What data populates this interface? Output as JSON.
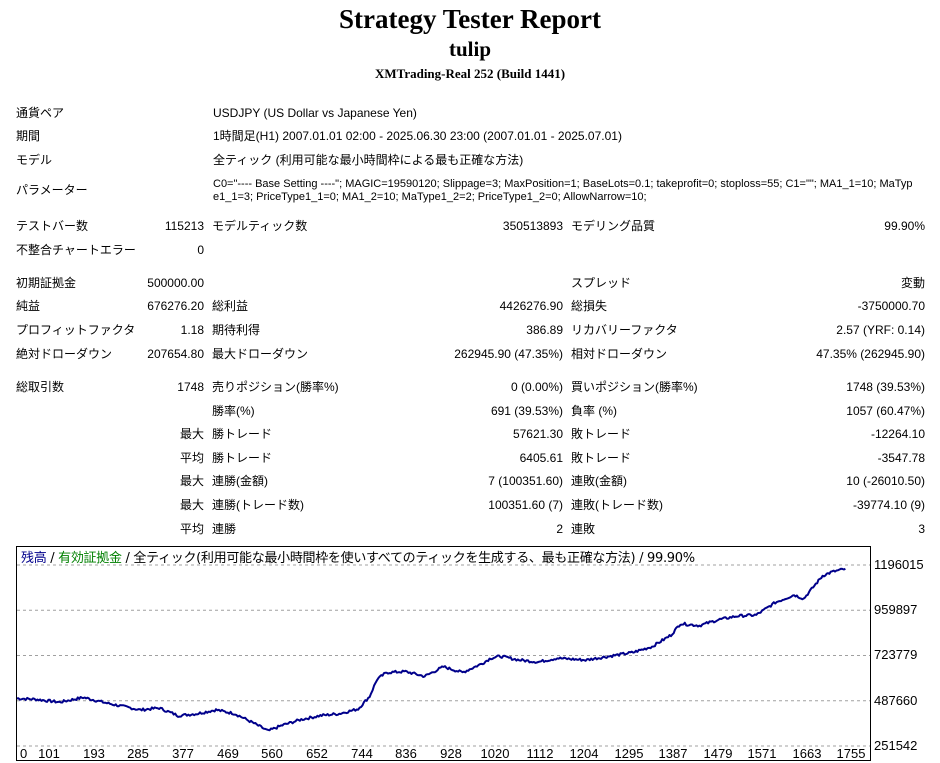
{
  "header": {
    "title": "Strategy Tester Report",
    "subtitle": "tulip",
    "server": "XMTrading-Real 252 (Build 1441)"
  },
  "settings": {
    "symbol_label": "通貨ペア",
    "symbol_value": "USDJPY (US Dollar vs Japanese Yen)",
    "period_label": "期間",
    "period_value": "1時間足(H1) 2007.01.01 02:00 - 2025.06.30 23:00 (2007.01.01 - 2025.07.01)",
    "model_label": "モデル",
    "model_value": "全ティック (利用可能な最小時間枠による最も正確な方法)",
    "params_label": "パラメーター",
    "params_value": "C0=\"---- Base Setting ----\"; MAGIC=19590120; Slippage=3; MaxPosition=1; BaseLots=0.1; takeprofit=0; stoploss=55; C1=\"\"; MA1_1=10; MaType1_1=3; PriceType1_1=0; MA1_2=10; MaType1_2=2; PriceType1_2=0; AllowNarrow=10;"
  },
  "stats": {
    "bars_label": "テストバー数",
    "bars_value": "115213",
    "ticks_label": "モデルティック数",
    "ticks_value": "350513893",
    "quality_label": "モデリング品質",
    "quality_value": "99.90%",
    "mismatch_label": "不整合チャートエラー",
    "mismatch_value": "0",
    "deposit_label": "初期証拠金",
    "deposit_value": "500000.00",
    "spread_label": "スプレッド",
    "spread_value": "変動",
    "net_label": "純益",
    "net_value": "676276.20",
    "gross_profit_label": "総利益",
    "gross_profit_value": "4426276.90",
    "gross_loss_label": "総損失",
    "gross_loss_value": "-3750000.70",
    "pf_label": "プロフィットファクタ",
    "pf_value": "1.18",
    "payoff_label": "期待利得",
    "payoff_value": "386.89",
    "rf_label": "リカバリーファクタ",
    "rf_value": "2.57 (YRF: 0.14)",
    "abs_dd_label": "絶対ドローダウン",
    "abs_dd_value": "207654.80",
    "max_dd_label": "最大ドローダウン",
    "max_dd_value": "262945.90 (47.35%)",
    "rel_dd_label": "相対ドローダウン",
    "rel_dd_value": "47.35% (262945.90)",
    "trades_label": "総取引数",
    "trades_value": "1748",
    "short_label": "売りポジション(勝率%)",
    "short_value": "0 (0.00%)",
    "long_label": "買いポジション(勝率%)",
    "long_value": "1748 (39.53%)",
    "winrate_label": "勝率(%)",
    "winrate_value": "691 (39.53%)",
    "lossrate_label": "負率 (%)",
    "lossrate_value": "1057 (60.47%)",
    "largest_label": "最大",
    "largest_win_label": "勝トレード",
    "largest_win_value": "57621.30",
    "largest_loss_label": "敗トレード",
    "largest_loss_value": "-12264.10",
    "average_label": "平均",
    "avg_win_label": "勝トレード",
    "avg_win_value": "6405.61",
    "avg_loss_label": "敗トレード",
    "avg_loss_value": "-3547.78",
    "max_consec_label": "最大",
    "max_consec_wins_label": "連勝(金額)",
    "max_consec_wins_value": "7 (100351.60)",
    "max_consec_losses_label": "連敗(金額)",
    "max_consec_losses_value": "10 (-26010.50)",
    "maximal_consec_label": "最大",
    "maximal_wins_label": "連勝(トレード数)",
    "maximal_wins_value": "100351.60 (7)",
    "maximal_losses_label": "連敗(トレード数)",
    "maximal_losses_value": "-39774.10 (9)",
    "avg_consec_label": "平均",
    "avg_consec_wins_label": "連勝",
    "avg_consec_wins_value": "2",
    "avg_consec_losses_label": "連敗",
    "avg_consec_losses_value": "3"
  },
  "chart_data": {
    "type": "line",
    "legend": {
      "balance": "残高",
      "sep1": " / ",
      "equity": "有効証拠金",
      "sep2": " / ",
      "model": "全ティック(利用可能な最小時間枠を使いすべてのティックを生成する、最も正確な方法)",
      "sep3": " / ",
      "quality": "99.90%"
    },
    "colors": {
      "line": "#00008b",
      "balance_text": "#00008b",
      "equity_text": "#008000",
      "grid": "#a0a0a0"
    },
    "xlim": [
      0,
      1800
    ],
    "ylim": [
      251542,
      1196015
    ],
    "yticks": [
      "1196015",
      "959897",
      "723779",
      "487660",
      "251542"
    ],
    "xticks": [
      "0",
      "101",
      "193",
      "285",
      "377",
      "469",
      "560",
      "652",
      "744",
      "836",
      "928",
      "1020",
      "1112",
      "1204",
      "1295",
      "1387",
      "1479",
      "1571",
      "1663",
      "1755"
    ],
    "series": [
      {
        "x": [
          0,
          40,
          90,
          140,
          190,
          230,
          260,
          300,
          340,
          380,
          420,
          460,
          500,
          530,
          560,
          600,
          640,
          680,
          720,
          744,
          760,
          780,
          820,
          860,
          900,
          940,
          980,
          1000,
          1020,
          1060,
          1100,
          1140,
          1200,
          1250,
          1300,
          1340,
          1380,
          1400,
          1440,
          1480,
          1520,
          1560,
          1600,
          1640,
          1660,
          1680,
          1700,
          1720,
          1748
        ],
        "y": [
          500000,
          495000,
          480000,
          505000,
          475000,
          455000,
          440000,
          450000,
          410000,
          420000,
          440000,
          420000,
          370000,
          330000,
          360000,
          390000,
          410000,
          420000,
          445000,
          510000,
          600000,
          635000,
          640000,
          615000,
          665000,
          635000,
          680000,
          710000,
          720000,
          700000,
          690000,
          710000,
          700000,
          720000,
          740000,
          770000,
          830000,
          890000,
          880000,
          910000,
          930000,
          935000,
          1000000,
          1040000,
          1020000,
          1080000,
          1140000,
          1160000,
          1176000
        ]
      }
    ]
  }
}
